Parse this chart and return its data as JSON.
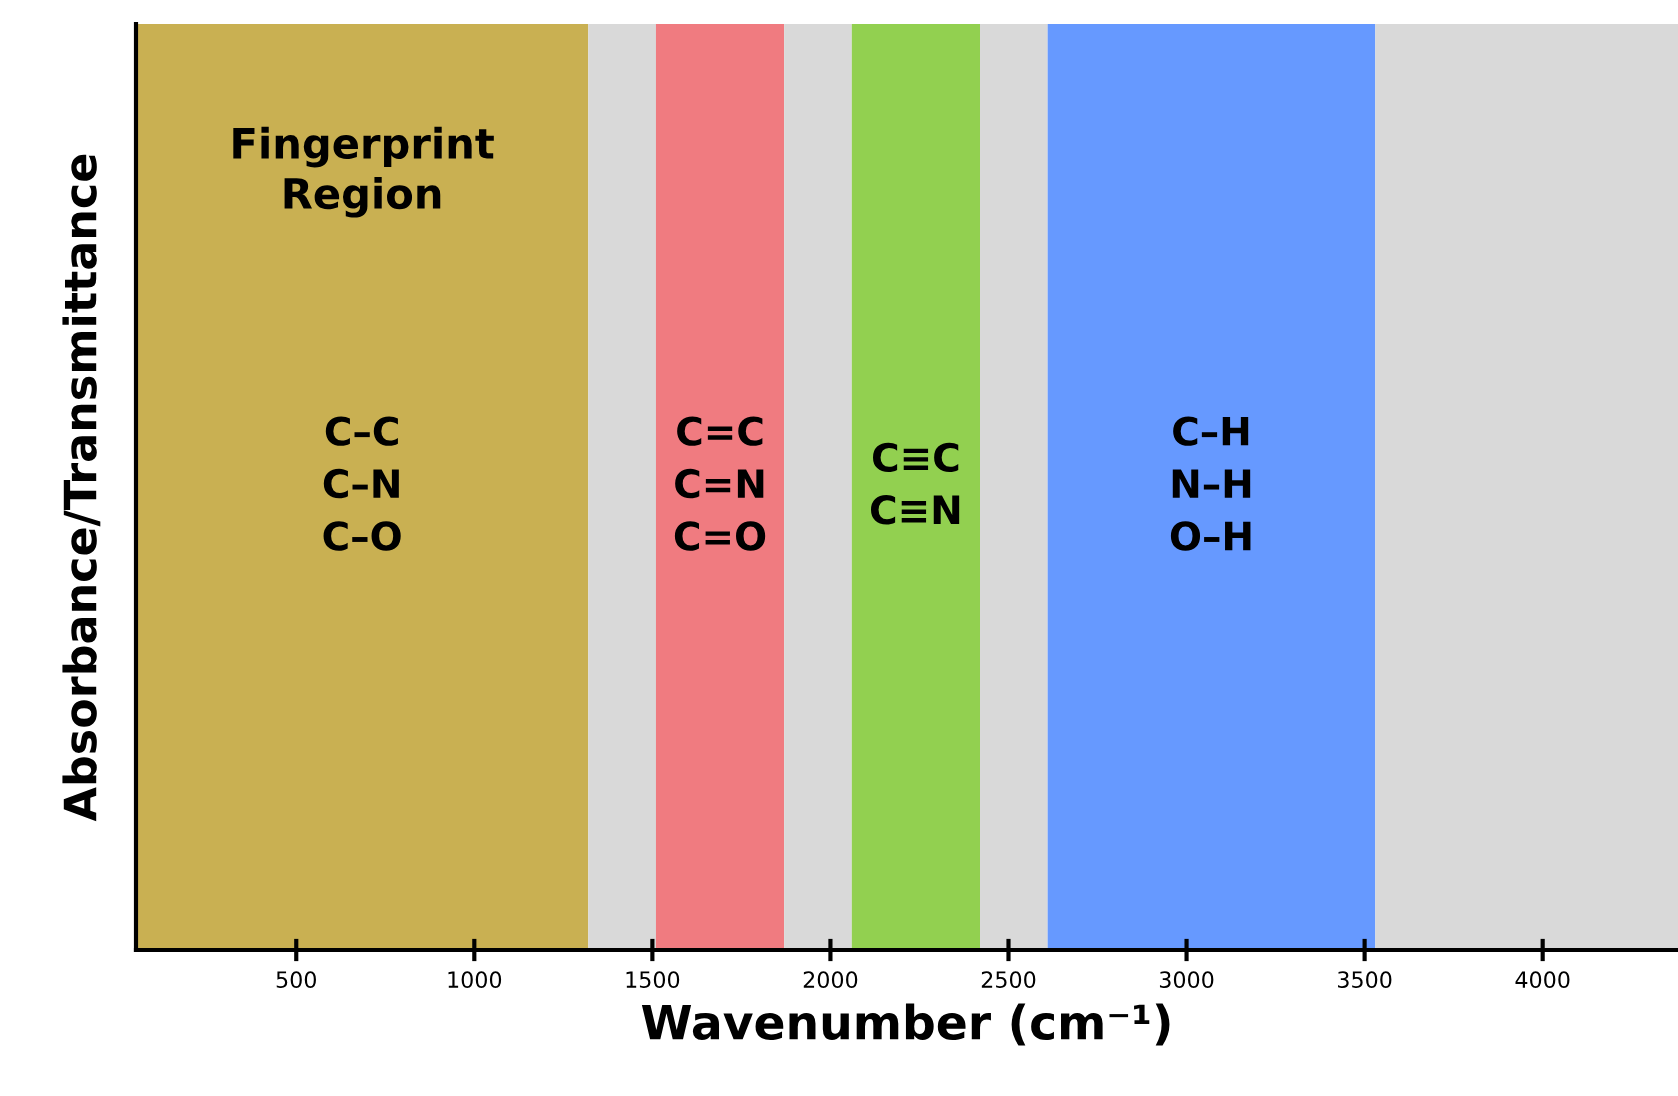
{
  "chart_data": {
    "type": "bar",
    "orientation": "horizontal",
    "stacked": true,
    "xlabel": "Wavenumber (cm⁻¹)",
    "ylabel": "Absorbance/Transmittance",
    "categories": [
      null
    ],
    "xlim": [
      50,
      4380
    ],
    "xticks": [
      500,
      1000,
      1500,
      2000,
      2500,
      3000,
      3500,
      4000
    ],
    "series": [
      {
        "color": "#c9b052",
        "values": [
          1320
        ],
        "value_labels": [
          "C–C\nC–N\nC–O"
        ]
      },
      {
        "color": "#d9d9d9",
        "values": [
          190
        ]
      },
      {
        "color": "#f07b80",
        "values": [
          360
        ],
        "value_labels": [
          "C=C\nC=N\nC=O"
        ]
      },
      {
        "color": "#d9d9d9",
        "values": [
          190
        ]
      },
      {
        "color": "#92d050",
        "values": [
          360
        ],
        "value_labels": [
          "C≡C\nC≡N"
        ]
      },
      {
        "color": "#d9d9d9",
        "values": [
          190
        ]
      },
      {
        "color": "#6699ff",
        "values": [
          920
        ],
        "value_labels": [
          "C–H\nN–H\nO–H"
        ]
      },
      {
        "color": "#d9d9d9",
        "values": [
          850
        ]
      }
    ],
    "annotations": [
      "Fingerprint\nRegion"
    ]
  }
}
